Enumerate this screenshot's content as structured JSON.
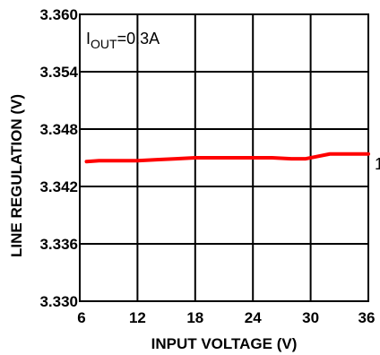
{
  "chart_data": {
    "type": "line",
    "xlabel": "INPUT VOLTAGE (V)",
    "ylabel": "LINE REGULATION (V)",
    "xlim": [
      6,
      36
    ],
    "ylim": [
      3.33,
      3.36
    ],
    "x_ticks": [
      "6",
      "12",
      "18",
      "24",
      "30",
      "36"
    ],
    "y_ticks": [
      "3.360",
      "3.354",
      "3.348",
      "3.342",
      "3.336",
      "3.330"
    ],
    "grid": true,
    "annotation": {
      "prefix": "I",
      "subscript": "OUT",
      "suffix": "=0.3A"
    },
    "edge_label": "1",
    "line_color": "#ff0000",
    "series": [
      {
        "x": [
          6.7,
          8,
          10,
          12,
          14,
          16,
          18,
          20,
          22,
          24,
          26,
          28,
          29.5,
          30.5,
          32,
          34,
          36
        ],
        "y": [
          3.3446,
          3.3447,
          3.3447,
          3.3447,
          3.3448,
          3.3449,
          3.345,
          3.345,
          3.345,
          3.345,
          3.345,
          3.3449,
          3.3449,
          3.3451,
          3.3454,
          3.3454,
          3.3454
        ]
      }
    ]
  }
}
